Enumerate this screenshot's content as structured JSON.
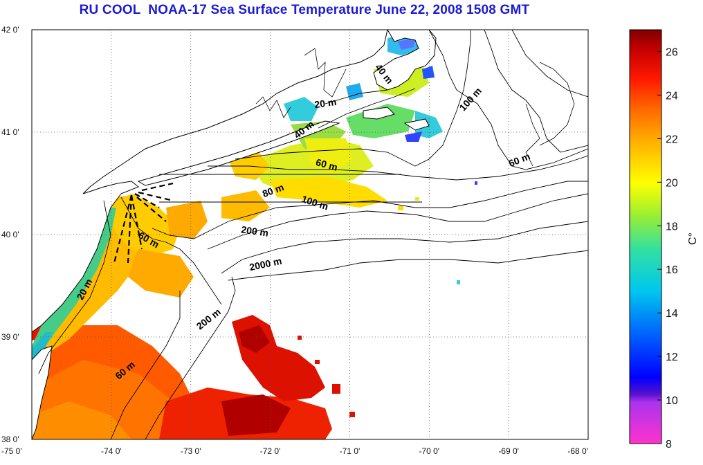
{
  "title": "RU COOL  NOAA-17 Sea Surface Temperature June 22, 2008 1508 GMT",
  "map": {
    "lon_range": [
      -75,
      -68
    ],
    "lat_range": [
      38,
      42
    ],
    "lon_ticks": [
      "-75 0'",
      "-74 0'",
      "-73 0'",
      "-72 0'",
      "-71 0'",
      "-70 0'",
      "-69 0'",
      "-68 0'"
    ],
    "lat_ticks": [
      "42 0'",
      "41 0'",
      "40 0'",
      "39 0'",
      "38 0'"
    ],
    "grid": "dotted"
  },
  "isobath_labels": [
    {
      "text": "40 m",
      "lon": -70.6,
      "lat": 41.55,
      "rot": 52
    },
    {
      "text": "100 m",
      "lon": -69.45,
      "lat": 41.3,
      "rot": -48
    },
    {
      "text": "20 m",
      "lon": -71.3,
      "lat": 41.25,
      "rot": -8
    },
    {
      "text": "40 m",
      "lon": -71.55,
      "lat": 41.0,
      "rot": -38
    },
    {
      "text": "60 m",
      "lon": -68.85,
      "lat": 40.7,
      "rot": -22
    },
    {
      "text": "60 m",
      "lon": -71.3,
      "lat": 40.65,
      "rot": 15
    },
    {
      "text": "80 m",
      "lon": -71.95,
      "lat": 40.4,
      "rot": -20
    },
    {
      "text": "100 m",
      "lon": -71.45,
      "lat": 40.28,
      "rot": 18
    },
    {
      "text": "200 m",
      "lon": -72.2,
      "lat": 40.0,
      "rot": 8
    },
    {
      "text": "60 m",
      "lon": -73.55,
      "lat": 39.92,
      "rot": 30
    },
    {
      "text": "2000 m",
      "lon": -72.05,
      "lat": 39.68,
      "rot": -12
    },
    {
      "text": "20 m",
      "lon": -74.3,
      "lat": 39.45,
      "rot": -62
    },
    {
      "text": "200 m",
      "lon": -72.75,
      "lat": 39.15,
      "rot": -38
    },
    {
      "text": "60 m",
      "lon": -73.8,
      "lat": 38.65,
      "rot": -40
    }
  ],
  "colorbar": {
    "label": "C°",
    "min": 8,
    "max": 27,
    "ticks": [
      8,
      10,
      12,
      14,
      16,
      18,
      20,
      22,
      24,
      26
    ]
  },
  "colors": {
    "title": "#1a1ad6",
    "land": "#ffffff",
    "coast": "#000000"
  }
}
